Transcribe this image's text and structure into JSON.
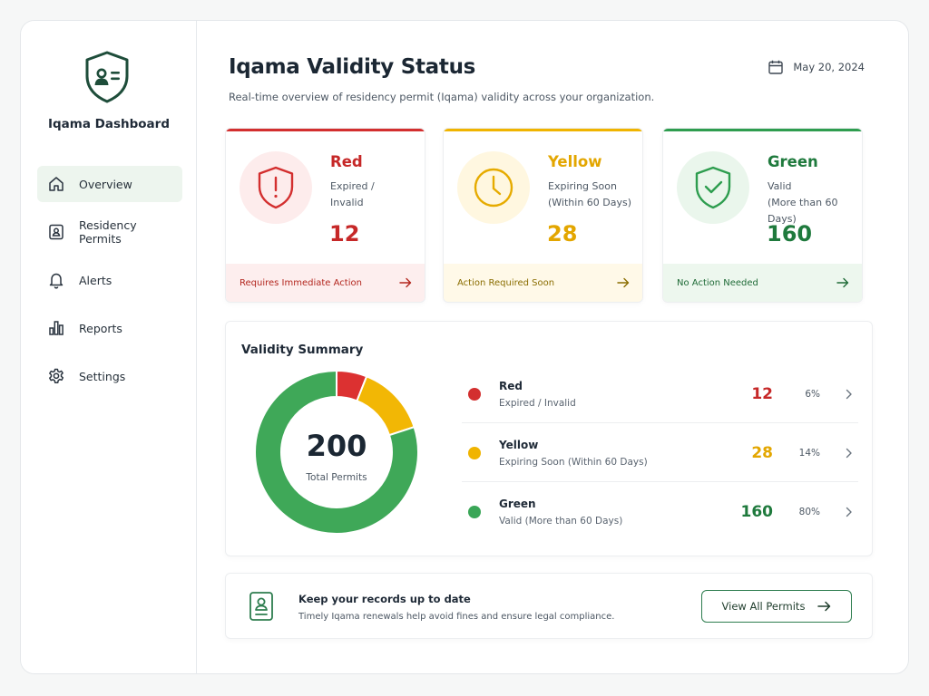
{
  "app": {
    "name": "Iqama Dashboard"
  },
  "sidebar": {
    "items": [
      {
        "label": "Overview",
        "icon": "home-icon",
        "active": true
      },
      {
        "label": "Residency Permits",
        "icon": "id-card-icon"
      },
      {
        "label": "Alerts",
        "icon": "bell-icon"
      },
      {
        "label": "Reports",
        "icon": "bar-chart-icon"
      },
      {
        "label": "Settings",
        "icon": "gear-icon"
      }
    ]
  },
  "header": {
    "title": "Iqama Validity Status",
    "subtitle": "Real-time overview of residency permit (Iqama) validity across your organization.",
    "date": "May 20, 2024"
  },
  "cards": [
    {
      "name": "Red",
      "desc_line1": "Expired /",
      "desc_line2": "Invalid",
      "count": "12",
      "footer": "Requires Immediate Action",
      "color": "#d32f2f",
      "icon": "shield-alert-icon"
    },
    {
      "name": "Yellow",
      "desc_line1": "Expiring Soon",
      "desc_line2": "(Within 60 Days)",
      "count": "28",
      "footer": "Action Required Soon",
      "color": "#f0b400",
      "icon": "clock-icon"
    },
    {
      "name": "Green",
      "desc_line1": "Valid",
      "desc_line2": "(More than 60 Days)",
      "count": "160",
      "footer": "No Action Needed",
      "color": "#2e9d4f",
      "icon": "shield-check-icon"
    }
  ],
  "summary": {
    "title": "Validity Summary",
    "total": "200",
    "total_label": "Total Permits",
    "rows": [
      {
        "name": "Red",
        "desc": "Expired / Invalid",
        "count": "12",
        "percent": "6%",
        "color": "#d32f2f"
      },
      {
        "name": "Yellow",
        "desc": "Expiring Soon (Within 60 Days)",
        "count": "28",
        "percent": "14%",
        "color": "#f0b400"
      },
      {
        "name": "Green",
        "desc": "Valid (More than 60 Days)",
        "count": "160",
        "percent": "80%",
        "color": "#3aa657"
      }
    ]
  },
  "chart_data": {
    "type": "pie",
    "categories": [
      "Red",
      "Yellow",
      "Green"
    ],
    "values": [
      12,
      28,
      160
    ],
    "colors": [
      "#dc3131",
      "#f2b705",
      "#3fa858"
    ],
    "title": "Validity Summary"
  },
  "banner": {
    "title": "Keep your records up to date",
    "desc": "Timely Iqama renewals help avoid fines and ensure legal compliance.",
    "button": "View All Permits"
  }
}
